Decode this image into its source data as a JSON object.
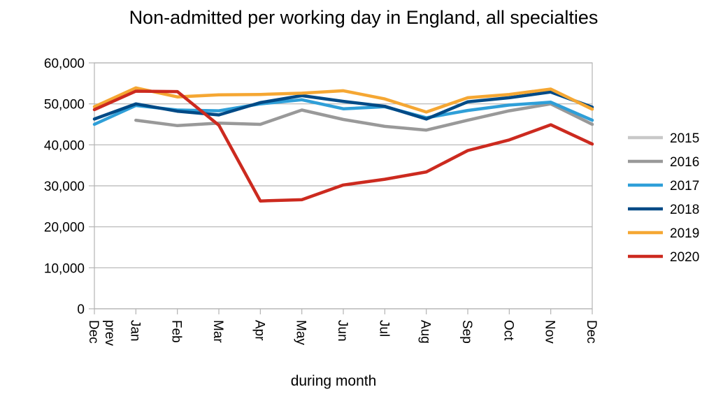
{
  "chart_data": {
    "type": "line",
    "title": "Non-admitted per working day in England, all specialties",
    "xlabel": "during month",
    "ylabel": "",
    "categories": [
      "Dec prev",
      "Jan",
      "Feb",
      "Mar",
      "Apr",
      "May",
      "Jun",
      "Jul",
      "Aug",
      "Sep",
      "Oct",
      "Nov",
      "Dec"
    ],
    "ylim": [
      0,
      60000
    ],
    "yticks": [
      "0",
      "10,000",
      "20,000",
      "30,000",
      "40,000",
      "50,000",
      "60,000"
    ],
    "grid": "horizontal",
    "legend_position": "right",
    "series": [
      {
        "name": "2015",
        "color": "#c8c8c8",
        "values": [
          null,
          null,
          null,
          null,
          null,
          null,
          null,
          null,
          null,
          null,
          null,
          null,
          null
        ]
      },
      {
        "name": "2016",
        "color": "#999999",
        "values": [
          null,
          46000,
          44700,
          45300,
          45000,
          48500,
          46200,
          44500,
          43600,
          46000,
          48300,
          50000,
          45000
        ]
      },
      {
        "name": "2017",
        "color": "#2f9fd8",
        "values": [
          45000,
          49600,
          48500,
          48300,
          50000,
          51000,
          48800,
          49300,
          46600,
          48400,
          49700,
          50400,
          46000
        ]
      },
      {
        "name": "2018",
        "color": "#004a86",
        "values": [
          46300,
          50000,
          48200,
          47300,
          50300,
          52000,
          50600,
          49400,
          46300,
          50500,
          51500,
          52900,
          49200
        ]
      },
      {
        "name": "2019",
        "color": "#f5a733",
        "values": [
          49300,
          53900,
          51700,
          52200,
          52300,
          52600,
          53200,
          51200,
          48000,
          51500,
          52300,
          53600,
          48700
        ]
      },
      {
        "name": "2020",
        "color": "#cc2a1f",
        "values": [
          48600,
          53100,
          53000,
          44800,
          26300,
          26600,
          30200,
          31600,
          33400,
          38600,
          41200,
          44900,
          40200
        ]
      }
    ]
  }
}
